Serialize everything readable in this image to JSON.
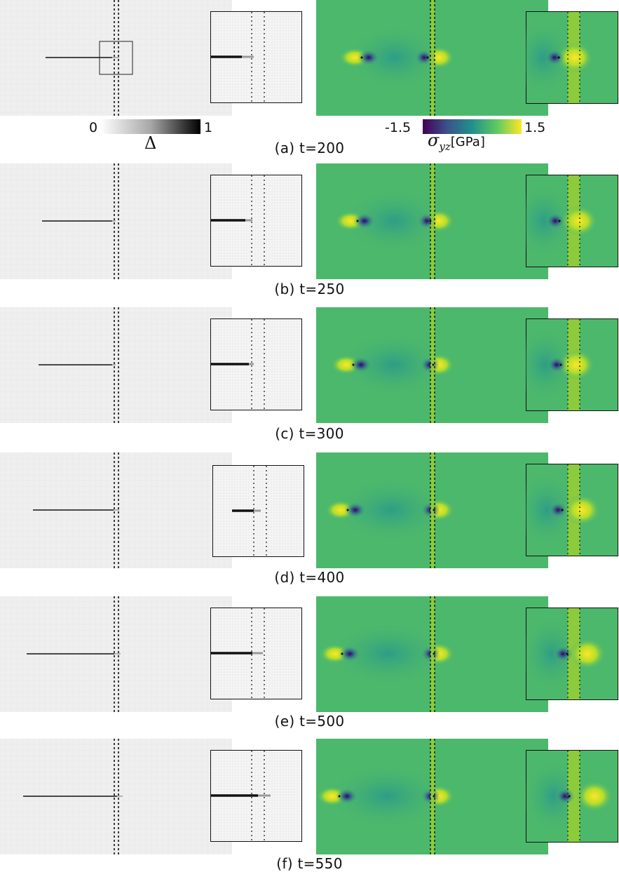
{
  "panels": [
    {
      "caption": "(a) t=200",
      "crack_start": 65,
      "crack_end": 160,
      "fade_end": 170,
      "inset_end": 345,
      "inset_fade": 362,
      "zoom_box": true,
      "stress": {
        "tip_left": 514,
        "tip_left_blue": 522,
        "tip_mid_blue": 604,
        "crack_dots": 614,
        "inset_blue": 797,
        "inset_yellow": 820
      }
    },
    {
      "caption": "(b) t=250",
      "crack_start": 60,
      "crack_end": 160,
      "fade_end": 165,
      "inset_end": 350,
      "inset_fade": 360,
      "zoom_box": false,
      "stress": {
        "tip_left": 508,
        "tip_left_blue": 516,
        "tip_mid_blue": 608,
        "crack_dots": 614,
        "inset_blue": 798,
        "inset_yellow": 826
      }
    },
    {
      "caption": "(c) t=300",
      "crack_start": 55,
      "crack_end": 160,
      "fade_end": 165,
      "inset_end": 355,
      "inset_fade": 362,
      "zoom_box": false,
      "stress": {
        "tip_left": 502,
        "tip_left_blue": 511,
        "tip_mid_blue": 612,
        "crack_dots": 614,
        "inset_blue": 800,
        "inset_yellow": 822
      }
    },
    {
      "caption": "(d) t=400",
      "crack_start": 47,
      "crack_end": 162,
      "fade_end": 170,
      "inset_end": 362,
      "inset_fade": 372,
      "zoom_box": false,
      "stress": {
        "tip_left": 494,
        "tip_left_blue": 503,
        "tip_mid_blue": 613,
        "crack_dots": 614,
        "inset_blue": 802,
        "inset_yellow": 830
      }
    },
    {
      "caption": "(e) t=500",
      "crack_start": 38,
      "crack_end": 163,
      "fade_end": 172,
      "inset_end": 360,
      "inset_fade": 375,
      "zoom_box": false,
      "stress": {
        "tip_left": 486,
        "tip_left_blue": 495,
        "tip_mid_blue": 613,
        "crack_dots": 614,
        "inset_blue": 809,
        "inset_yellow": 838
      }
    },
    {
      "caption": "(f) t=550",
      "crack_start": 33,
      "crack_end": 167,
      "fade_end": 175,
      "inset_end": 368,
      "inset_fade": 386,
      "zoom_box": false,
      "stress": {
        "tip_left": 482,
        "tip_left_blue": 491,
        "tip_mid_blue": 613,
        "crack_dots": 614,
        "inset_blue": 812,
        "inset_yellow": 848
      }
    }
  ],
  "damage_colorbar": {
    "min": "0",
    "max": "1",
    "symbol": "Δ"
  },
  "stress_colorbar": {
    "min": "-1.5",
    "max": "1.5",
    "symbol_main": "σ",
    "symbol_sub": "yz",
    "unit": "[GPa]"
  },
  "colors": {
    "field_bg": "#efefef",
    "inset_bg": "#f6f6f6",
    "stress_bg": "#4cb86c",
    "stress_layer": "#8ccb3c",
    "viridis_low": "#440154",
    "viridis_high": "#fde725"
  }
}
